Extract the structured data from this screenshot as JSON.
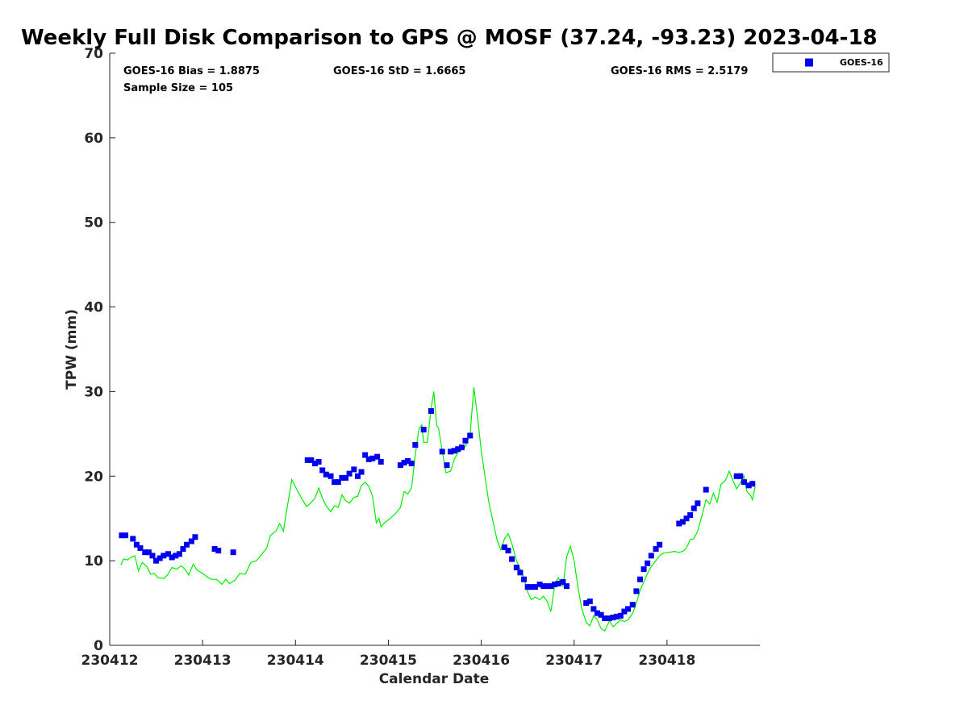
{
  "chart_data": {
    "type": "scatter",
    "title": "Weekly Full Disk Comparison to GPS @ MOSF (37.24, -93.23) 2023-04-18",
    "xlabel": "Calendar Date",
    "ylabel": "TPW (mm)",
    "xlim": [
      0,
      7
    ],
    "ylim": [
      0,
      70
    ],
    "x_ticks": [
      0,
      1,
      2,
      3,
      4,
      5,
      6
    ],
    "x_tick_labels": [
      "230412",
      "230413",
      "230414",
      "230415",
      "230416",
      "230417",
      "230418"
    ],
    "y_ticks": [
      0,
      10,
      20,
      30,
      40,
      50,
      60,
      70
    ],
    "y_tick_labels": [
      "0",
      "10",
      "20",
      "30",
      "40",
      "50",
      "60",
      "70"
    ],
    "stats": {
      "bias": "GOES-16 Bias = 1.8875",
      "std": "GOES-16 StD = 1.6665",
      "rms": "GOES-16 RMS = 2.5179",
      "sample": "Sample Size = 105"
    },
    "legend": [
      {
        "name": "GOES-16",
        "color": "#0000ee",
        "marker": "square"
      }
    ],
    "series": [
      {
        "name": "GOES-16",
        "kind": "scatter",
        "color": "#0000ee",
        "points": [
          [
            0.13,
            13.0
          ],
          [
            0.17,
            13.0
          ],
          [
            0.25,
            12.6
          ],
          [
            0.29,
            11.9
          ],
          [
            0.33,
            11.5
          ],
          [
            0.38,
            11.0
          ],
          [
            0.42,
            11.0
          ],
          [
            0.46,
            10.6
          ],
          [
            0.5,
            10.0
          ],
          [
            0.54,
            10.3
          ],
          [
            0.58,
            10.6
          ],
          [
            0.63,
            10.8
          ],
          [
            0.67,
            10.4
          ],
          [
            0.71,
            10.6
          ],
          [
            0.75,
            10.8
          ],
          [
            0.79,
            11.4
          ],
          [
            0.83,
            11.9
          ],
          [
            0.88,
            12.3
          ],
          [
            0.92,
            12.8
          ],
          [
            1.13,
            11.4
          ],
          [
            1.17,
            11.2
          ],
          [
            1.33,
            11.0
          ],
          [
            2.13,
            21.9
          ],
          [
            2.17,
            21.9
          ],
          [
            2.21,
            21.5
          ],
          [
            2.25,
            21.7
          ],
          [
            2.29,
            20.7
          ],
          [
            2.33,
            20.2
          ],
          [
            2.38,
            20.0
          ],
          [
            2.42,
            19.3
          ],
          [
            2.46,
            19.3
          ],
          [
            2.5,
            19.8
          ],
          [
            2.54,
            19.8
          ],
          [
            2.58,
            20.3
          ],
          [
            2.63,
            20.8
          ],
          [
            2.67,
            20.0
          ],
          [
            2.71,
            20.5
          ],
          [
            2.75,
            22.5
          ],
          [
            2.79,
            22.0
          ],
          [
            2.83,
            22.1
          ],
          [
            2.88,
            22.3
          ],
          [
            2.92,
            21.7
          ],
          [
            3.13,
            21.3
          ],
          [
            3.17,
            21.6
          ],
          [
            3.21,
            21.8
          ],
          [
            3.25,
            21.5
          ],
          [
            3.29,
            23.7
          ],
          [
            3.38,
            25.5
          ],
          [
            3.46,
            27.7
          ],
          [
            3.58,
            22.9
          ],
          [
            3.63,
            21.3
          ],
          [
            3.67,
            22.9
          ],
          [
            3.71,
            23.0
          ],
          [
            3.75,
            23.2
          ],
          [
            3.79,
            23.4
          ],
          [
            3.83,
            24.2
          ],
          [
            3.88,
            24.8
          ],
          [
            4.25,
            11.6
          ],
          [
            4.29,
            11.2
          ],
          [
            4.33,
            10.2
          ],
          [
            4.38,
            9.2
          ],
          [
            4.42,
            8.6
          ],
          [
            4.46,
            7.8
          ],
          [
            4.5,
            6.9
          ],
          [
            4.54,
            6.9
          ],
          [
            4.58,
            6.9
          ],
          [
            4.63,
            7.2
          ],
          [
            4.67,
            7.0
          ],
          [
            4.71,
            7.0
          ],
          [
            4.75,
            7.0
          ],
          [
            4.79,
            7.2
          ],
          [
            4.83,
            7.3
          ],
          [
            4.88,
            7.5
          ],
          [
            4.92,
            7.0
          ],
          [
            5.13,
            5.0
          ],
          [
            5.17,
            5.2
          ],
          [
            5.21,
            4.3
          ],
          [
            5.25,
            3.8
          ],
          [
            5.29,
            3.6
          ],
          [
            5.33,
            3.2
          ],
          [
            5.38,
            3.2
          ],
          [
            5.42,
            3.3
          ],
          [
            5.46,
            3.4
          ],
          [
            5.5,
            3.5
          ],
          [
            5.54,
            4.0
          ],
          [
            5.58,
            4.3
          ],
          [
            5.63,
            4.8
          ],
          [
            5.67,
            6.4
          ],
          [
            5.71,
            7.8
          ],
          [
            5.75,
            9.0
          ],
          [
            5.79,
            9.7
          ],
          [
            5.83,
            10.6
          ],
          [
            5.88,
            11.4
          ],
          [
            5.92,
            11.9
          ],
          [
            6.13,
            14.4
          ],
          [
            6.17,
            14.6
          ],
          [
            6.21,
            15.0
          ],
          [
            6.25,
            15.4
          ],
          [
            6.29,
            16.2
          ],
          [
            6.33,
            16.8
          ],
          [
            6.42,
            18.4
          ],
          [
            6.75,
            20.0
          ],
          [
            6.79,
            20.0
          ],
          [
            6.83,
            19.3
          ],
          [
            6.88,
            18.9
          ],
          [
            6.92,
            19.1
          ]
        ]
      },
      {
        "name": "GPS",
        "kind": "line",
        "color": "#00ee00",
        "points": [
          [
            0.12,
            9.5
          ],
          [
            0.15,
            10.2
          ],
          [
            0.19,
            10.1
          ],
          [
            0.23,
            10.4
          ],
          [
            0.27,
            10.6
          ],
          [
            0.31,
            8.8
          ],
          [
            0.35,
            9.8
          ],
          [
            0.4,
            9.3
          ],
          [
            0.44,
            8.4
          ],
          [
            0.48,
            8.5
          ],
          [
            0.52,
            8.0
          ],
          [
            0.58,
            7.9
          ],
          [
            0.62,
            8.3
          ],
          [
            0.67,
            9.2
          ],
          [
            0.72,
            9.0
          ],
          [
            0.77,
            9.4
          ],
          [
            0.81,
            9.0
          ],
          [
            0.85,
            8.3
          ],
          [
            0.9,
            9.6
          ],
          [
            0.94,
            8.9
          ],
          [
            1.0,
            8.5
          ],
          [
            1.06,
            8.0
          ],
          [
            1.1,
            7.8
          ],
          [
            1.15,
            7.8
          ],
          [
            1.21,
            7.2
          ],
          [
            1.25,
            7.8
          ],
          [
            1.29,
            7.3
          ],
          [
            1.35,
            7.7
          ],
          [
            1.4,
            8.5
          ],
          [
            1.46,
            8.4
          ],
          [
            1.52,
            9.8
          ],
          [
            1.58,
            10.0
          ],
          [
            1.64,
            10.8
          ],
          [
            1.69,
            11.5
          ],
          [
            1.73,
            13.0
          ],
          [
            1.79,
            13.5
          ],
          [
            1.83,
            14.4
          ],
          [
            1.87,
            13.5
          ],
          [
            1.9,
            15.6
          ],
          [
            1.96,
            19.6
          ],
          [
            2.02,
            18.3
          ],
          [
            2.08,
            17.1
          ],
          [
            2.12,
            16.4
          ],
          [
            2.17,
            16.9
          ],
          [
            2.21,
            17.4
          ],
          [
            2.25,
            18.6
          ],
          [
            2.29,
            17.4
          ],
          [
            2.33,
            16.5
          ],
          [
            2.38,
            15.8
          ],
          [
            2.42,
            16.5
          ],
          [
            2.46,
            16.3
          ],
          [
            2.5,
            17.8
          ],
          [
            2.54,
            17.1
          ],
          [
            2.58,
            16.8
          ],
          [
            2.63,
            17.5
          ],
          [
            2.67,
            17.6
          ],
          [
            2.71,
            18.9
          ],
          [
            2.75,
            19.3
          ],
          [
            2.79,
            18.8
          ],
          [
            2.83,
            17.6
          ],
          [
            2.87,
            14.5
          ],
          [
            2.9,
            15.0
          ],
          [
            2.92,
            14.0
          ],
          [
            2.96,
            14.5
          ],
          [
            3.02,
            15.0
          ],
          [
            3.08,
            15.6
          ],
          [
            3.13,
            16.3
          ],
          [
            3.17,
            18.2
          ],
          [
            3.21,
            17.9
          ],
          [
            3.25,
            18.6
          ],
          [
            3.29,
            22.5
          ],
          [
            3.33,
            25.6
          ],
          [
            3.36,
            26.1
          ],
          [
            3.38,
            24.0
          ],
          [
            3.42,
            24.0
          ],
          [
            3.46,
            28.0
          ],
          [
            3.49,
            30.0
          ],
          [
            3.52,
            26.0
          ],
          [
            3.54,
            25.7
          ],
          [
            3.58,
            23.0
          ],
          [
            3.62,
            20.4
          ],
          [
            3.67,
            20.6
          ],
          [
            3.71,
            22.0
          ],
          [
            3.75,
            22.8
          ],
          [
            3.79,
            23.2
          ],
          [
            3.83,
            23.5
          ],
          [
            3.88,
            25.0
          ],
          [
            3.92,
            30.5
          ],
          [
            3.96,
            27.0
          ],
          [
            4.0,
            23.0
          ],
          [
            4.04,
            20.0
          ],
          [
            4.08,
            17.0
          ],
          [
            4.13,
            14.5
          ],
          [
            4.17,
            12.5
          ],
          [
            4.21,
            11.3
          ],
          [
            4.25,
            12.6
          ],
          [
            4.29,
            13.2
          ],
          [
            4.33,
            12.0
          ],
          [
            4.38,
            10.0
          ],
          [
            4.42,
            9.0
          ],
          [
            4.46,
            8.0
          ],
          [
            4.5,
            6.3
          ],
          [
            4.54,
            5.4
          ],
          [
            4.58,
            5.7
          ],
          [
            4.63,
            5.4
          ],
          [
            4.67,
            5.8
          ],
          [
            4.71,
            5.2
          ],
          [
            4.75,
            4.0
          ],
          [
            4.79,
            7.0
          ],
          [
            4.83,
            8.0
          ],
          [
            4.88,
            7.0
          ],
          [
            4.92,
            10.5
          ],
          [
            4.96,
            11.7
          ],
          [
            5.0,
            10.0
          ],
          [
            5.04,
            7.0
          ],
          [
            5.08,
            4.5
          ],
          [
            5.13,
            2.7
          ],
          [
            5.17,
            2.3
          ],
          [
            5.21,
            3.5
          ],
          [
            5.25,
            3.0
          ],
          [
            5.29,
            2.0
          ],
          [
            5.33,
            1.7
          ],
          [
            5.38,
            2.9
          ],
          [
            5.42,
            2.2
          ],
          [
            5.46,
            2.6
          ],
          [
            5.5,
            3.0
          ],
          [
            5.54,
            2.8
          ],
          [
            5.58,
            3.0
          ],
          [
            5.63,
            3.8
          ],
          [
            5.67,
            5.0
          ],
          [
            5.71,
            6.5
          ],
          [
            5.75,
            7.5
          ],
          [
            5.79,
            8.5
          ],
          [
            5.83,
            9.3
          ],
          [
            5.88,
            10.0
          ],
          [
            5.92,
            10.6
          ],
          [
            5.96,
            10.9
          ],
          [
            6.02,
            11.0
          ],
          [
            6.08,
            11.1
          ],
          [
            6.13,
            11.0
          ],
          [
            6.17,
            11.1
          ],
          [
            6.21,
            11.5
          ],
          [
            6.25,
            12.5
          ],
          [
            6.29,
            12.6
          ],
          [
            6.33,
            13.5
          ],
          [
            6.38,
            15.5
          ],
          [
            6.42,
            17.2
          ],
          [
            6.46,
            16.7
          ],
          [
            6.5,
            18.0
          ],
          [
            6.54,
            16.9
          ],
          [
            6.58,
            19.0
          ],
          [
            6.63,
            19.5
          ],
          [
            6.67,
            20.6
          ],
          [
            6.71,
            19.5
          ],
          [
            6.75,
            18.5
          ],
          [
            6.79,
            19.2
          ],
          [
            6.83,
            20.0
          ],
          [
            6.86,
            18.2
          ],
          [
            6.9,
            17.7
          ],
          [
            6.92,
            17.2
          ],
          [
            6.95,
            18.8
          ]
        ]
      }
    ]
  }
}
